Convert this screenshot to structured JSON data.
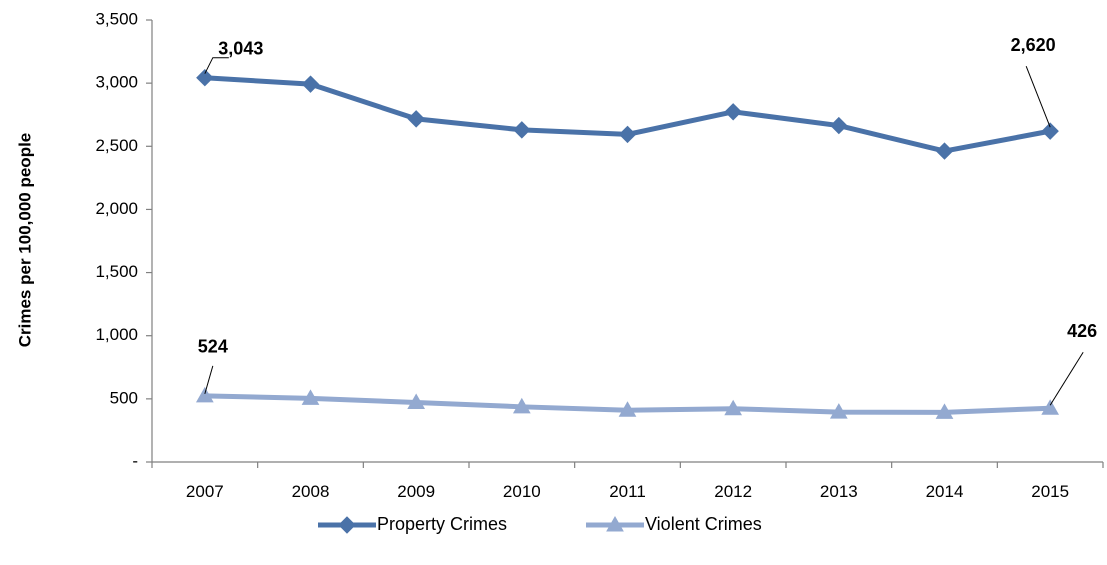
{
  "chart_data": {
    "type": "line",
    "title": "",
    "xlabel": "",
    "ylabel": "Crimes per 100,000 people",
    "categories": [
      "2007",
      "2008",
      "2009",
      "2010",
      "2011",
      "2012",
      "2013",
      "2014",
      "2015"
    ],
    "ylim": [
      0,
      3500
    ],
    "y_ticks": [
      0,
      500,
      1000,
      1500,
      2000,
      2500,
      3000,
      3500
    ],
    "y_tick_labels": [
      "-",
      "500",
      "1,000",
      "1,500",
      "2,000",
      "2,500",
      "3,000",
      "3,500"
    ],
    "grid": false,
    "legend_position": "bottom",
    "series": [
      {
        "name": "Property Crimes",
        "color": "#4A72A8",
        "marker": "diamond",
        "values": [
          3043,
          2992,
          2717,
          2630,
          2594,
          2773,
          2664,
          2462,
          2620
        ]
      },
      {
        "name": "Violent Crimes",
        "color": "#93A9D0",
        "marker": "triangle",
        "values": [
          524,
          504,
          471,
          437,
          410,
          422,
          395,
          393,
          426
        ]
      }
    ],
    "annotations": [
      {
        "series": 0,
        "index": 0,
        "text": "3,043"
      },
      {
        "series": 0,
        "index": 8,
        "text": "2,620"
      },
      {
        "series": 1,
        "index": 0,
        "text": "524"
      },
      {
        "series": 1,
        "index": 8,
        "text": "426"
      }
    ]
  }
}
